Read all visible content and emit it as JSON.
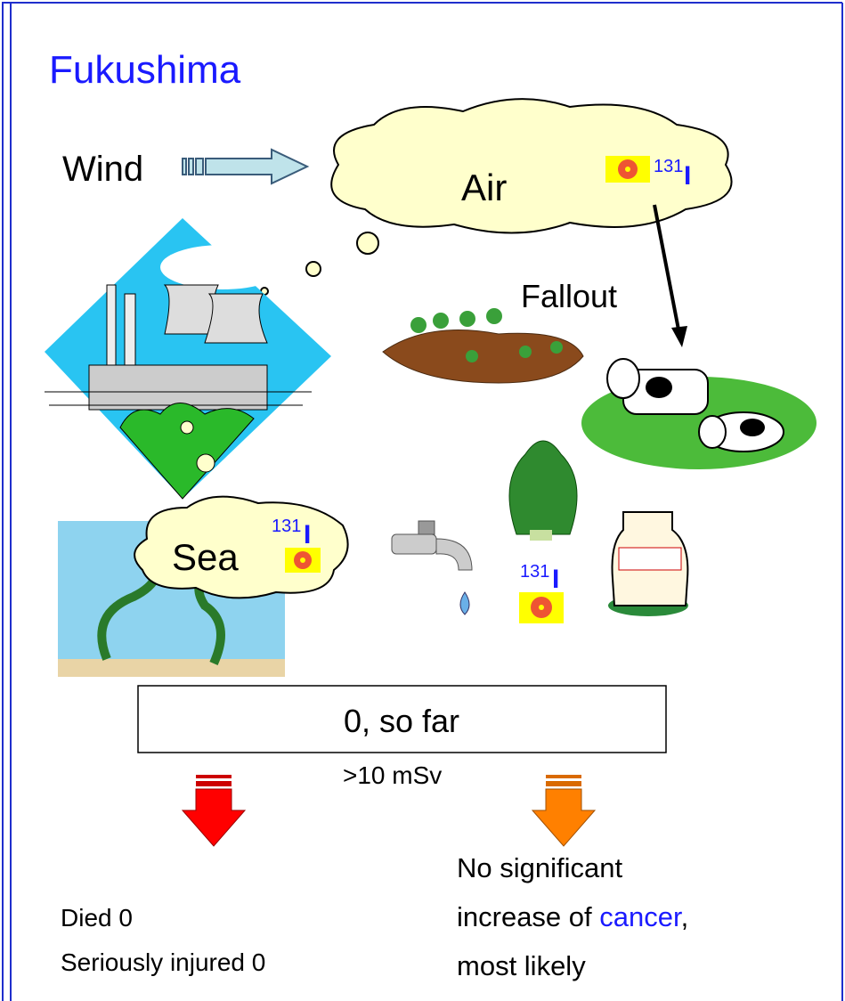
{
  "title": "Fukushima",
  "labels": {
    "wind": "Wind",
    "air": "Air",
    "fallout": "Fallout",
    "sea": "Sea"
  },
  "isotopes": [
    {
      "mass": "131",
      "symbol": "I"
    },
    {
      "mass": "131",
      "symbol": "I"
    },
    {
      "mass": "131",
      "symbol": "I"
    }
  ],
  "box": "0, so far",
  "dose": ">10 mSv",
  "left_outcomes": [
    "Died  0",
    "Seriously injured  0"
  ],
  "right_outcome": {
    "line1": "No significant",
    "line2_pre": "increase of ",
    "highlight": "cancer",
    "line2_post": ",",
    "line3": "most likely"
  }
}
